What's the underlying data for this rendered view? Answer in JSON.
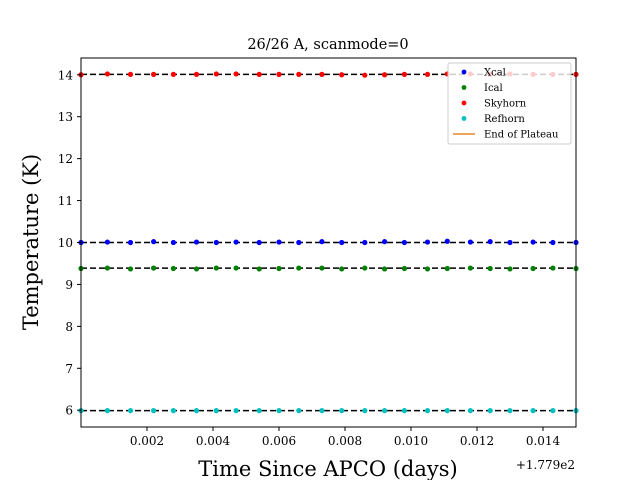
{
  "chart_data": {
    "type": "scatter",
    "title": "26/26 A, scanmode=0",
    "xlabel": "Time Since APCO (days)",
    "ylabel": "Temperature (K)",
    "x_offset_label": "+1.779e2",
    "xlim": [
      0.0,
      0.015
    ],
    "ylim": [
      5.6,
      14.4
    ],
    "x_ticks": [
      0.002,
      0.004,
      0.006,
      0.008,
      0.01,
      0.012,
      0.014
    ],
    "x_tick_labels": [
      "0.002",
      "0.004",
      "0.006",
      "0.008",
      "0.010",
      "0.012",
      "0.014"
    ],
    "y_ticks": [
      6,
      7,
      8,
      9,
      10,
      11,
      12,
      13,
      14
    ],
    "y_tick_labels": [
      "6",
      "7",
      "8",
      "9",
      "10",
      "11",
      "12",
      "13",
      "14"
    ],
    "grid": false,
    "legend_position": "top-right",
    "x": [
      0.0,
      0.0008,
      0.0015,
      0.0022,
      0.0028,
      0.0035,
      0.0041,
      0.0047,
      0.0054,
      0.006,
      0.0066,
      0.0073,
      0.0079,
      0.0086,
      0.0092,
      0.0098,
      0.0105,
      0.0111,
      0.0118,
      0.0124,
      0.013,
      0.0137,
      0.0143,
      0.015
    ],
    "series": [
      {
        "name": "Xcal",
        "color": "#0000ff",
        "plateau": 10.0,
        "values": [
          10.0,
          10.01,
          10.0,
          10.02,
          10.0,
          10.01,
          10.0,
          10.01,
          10.0,
          10.01,
          10.0,
          10.02,
          10.0,
          10.0,
          10.02,
          10.0,
          10.01,
          10.03,
          10.01,
          10.02,
          10.0,
          10.01,
          10.0,
          10.0
        ]
      },
      {
        "name": "Ical",
        "color": "#008000",
        "plateau": 9.39,
        "values": [
          9.38,
          9.39,
          9.37,
          9.39,
          9.38,
          9.37,
          9.39,
          9.39,
          9.37,
          9.38,
          9.39,
          9.39,
          9.37,
          9.39,
          9.37,
          9.38,
          9.37,
          9.38,
          9.39,
          9.38,
          9.37,
          9.38,
          9.39,
          9.38
        ]
      },
      {
        "name": "Skyhorn",
        "color": "#ff0000",
        "plateau": 14.01,
        "values": [
          14.0,
          14.02,
          14.01,
          14.01,
          14.01,
          14.01,
          14.02,
          14.02,
          14.01,
          14.01,
          14.01,
          14.01,
          14.0,
          13.99,
          14.0,
          14.01,
          14.01,
          14.02,
          14.02,
          14.01,
          14.02,
          14.01,
          14.01,
          14.01
        ]
      },
      {
        "name": "Refhorn",
        "color": "#00bfbf",
        "plateau": 5.99,
        "values": [
          5.99,
          5.99,
          5.99,
          5.99,
          5.99,
          5.99,
          5.99,
          5.99,
          5.99,
          5.99,
          5.99,
          5.99,
          5.99,
          5.99,
          5.99,
          5.99,
          5.99,
          5.99,
          5.99,
          5.99,
          5.99,
          5.99,
          5.99,
          5.99
        ]
      }
    ],
    "end_of_plateau": {
      "name": "End of Plateau",
      "color": "#e8892a"
    }
  }
}
